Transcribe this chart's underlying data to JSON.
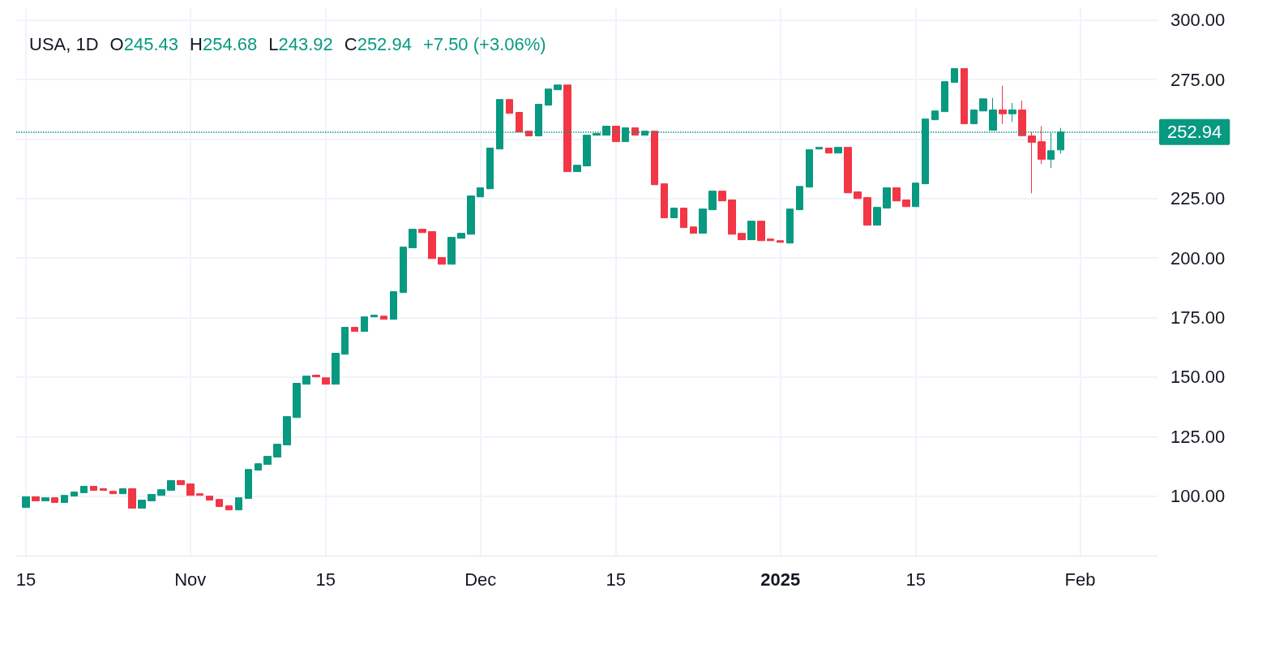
{
  "chart_data": {
    "type": "candlestick",
    "title": "USA, 1D",
    "annotations": [
      "O245.43",
      "H254.68",
      "L243.92",
      "C252.94",
      "+7.50 (+3.06%)"
    ],
    "x": [
      "2024-10-15",
      "2024-10-16",
      "2024-10-17",
      "2024-10-18",
      "2024-10-19",
      "2024-10-20",
      "2024-10-21",
      "2024-10-22",
      "2024-10-23",
      "2024-10-24",
      "2024-10-25",
      "2024-10-26",
      "2024-10-27",
      "2024-10-28",
      "2024-10-29",
      "2024-10-30",
      "2024-10-31",
      "2024-11-01",
      "2024-11-02",
      "2024-11-03",
      "2024-11-04",
      "2024-11-05",
      "2024-11-06",
      "2024-11-07",
      "2024-11-08",
      "2024-11-09",
      "2024-11-10",
      "2024-11-11",
      "2024-11-12",
      "2024-11-13",
      "2024-11-14",
      "2024-11-15",
      "2024-11-16",
      "2024-11-17",
      "2024-11-18",
      "2024-11-19",
      "2024-11-20",
      "2024-11-21",
      "2024-11-22",
      "2024-11-23",
      "2024-11-24",
      "2024-11-25",
      "2024-11-26",
      "2024-11-27",
      "2024-11-28",
      "2024-11-29",
      "2024-11-30",
      "2024-12-01",
      "2024-12-02",
      "2024-12-03",
      "2024-12-04",
      "2024-12-05",
      "2024-12-06",
      "2024-12-07",
      "2024-12-08",
      "2024-12-09",
      "2024-12-10",
      "2024-12-11",
      "2024-12-12",
      "2024-12-13",
      "2024-12-14",
      "2024-12-15",
      "2024-12-16",
      "2024-12-17",
      "2024-12-18",
      "2024-12-19",
      "2024-12-20",
      "2024-12-21",
      "2024-12-22",
      "2024-12-23",
      "2024-12-24",
      "2024-12-25",
      "2024-12-26",
      "2024-12-27",
      "2024-12-28",
      "2024-12-29",
      "2024-12-30",
      "2024-12-31",
      "2025-01-01",
      "2025-01-02",
      "2025-01-03",
      "2025-01-04",
      "2025-01-05",
      "2025-01-06",
      "2025-01-07",
      "2025-01-08",
      "2025-01-09",
      "2025-01-10",
      "2025-01-11",
      "2025-01-12",
      "2025-01-13",
      "2025-01-14",
      "2025-01-15",
      "2025-01-16",
      "2025-01-17",
      "2025-01-18",
      "2025-01-19",
      "2025-01-20",
      "2025-01-21",
      "2025-01-22",
      "2025-01-23",
      "2025-01-24",
      "2025-01-25",
      "2025-01-26",
      "2025-01-27",
      "2025-01-28",
      "2025-01-29",
      "2025-01-30"
    ],
    "ohlc": [
      [
        95.2,
        99.7,
        95.2,
        99.7
      ],
      [
        99.7,
        99.7,
        98.0,
        98.0
      ],
      [
        98.0,
        99.3,
        98.0,
        99.3
      ],
      [
        99.3,
        99.3,
        97.3,
        97.3
      ],
      [
        97.3,
        100.3,
        97.3,
        100.3
      ],
      [
        100.0,
        101.7,
        100.0,
        101.7
      ],
      [
        101.4,
        104.1,
        101.4,
        104.1
      ],
      [
        104.1,
        104.1,
        102.4,
        102.4
      ],
      [
        103.1,
        103.1,
        102.4,
        102.4
      ],
      [
        102.0,
        102.0,
        101.0,
        101.0
      ],
      [
        101.0,
        103.1,
        101.0,
        103.1
      ],
      [
        103.1,
        103.1,
        94.9,
        94.9
      ],
      [
        94.9,
        98.3,
        94.9,
        98.3
      ],
      [
        98.0,
        100.7,
        98.0,
        100.7
      ],
      [
        100.3,
        102.7,
        100.3,
        102.7
      ],
      [
        102.4,
        106.5,
        102.4,
        106.5
      ],
      [
        106.5,
        106.5,
        104.8,
        104.8
      ],
      [
        105.1,
        105.1,
        100.3,
        100.3
      ],
      [
        101.0,
        101.0,
        100.3,
        100.3
      ],
      [
        100.0,
        100.0,
        98.3,
        98.3
      ],
      [
        98.6,
        98.6,
        95.6,
        95.6
      ],
      [
        95.9,
        95.9,
        94.2,
        94.2
      ],
      [
        94.2,
        99.3,
        94.2,
        99.3
      ],
      [
        99.0,
        111.2,
        99.0,
        111.2
      ],
      [
        110.9,
        113.6,
        110.9,
        113.6
      ],
      [
        113.3,
        116.7,
        113.3,
        116.7
      ],
      [
        116.4,
        121.8,
        116.4,
        121.8
      ],
      [
        121.5,
        133.4,
        121.5,
        133.4
      ],
      [
        133.0,
        147.4,
        133.0,
        147.4
      ],
      [
        147.0,
        150.4,
        147.0,
        150.4
      ],
      [
        150.8,
        150.8,
        150.1,
        150.1
      ],
      [
        149.7,
        149.7,
        147.0,
        147.0
      ],
      [
        147.0,
        160.0,
        147.0,
        160.0
      ],
      [
        159.6,
        170.9,
        159.6,
        170.9
      ],
      [
        170.9,
        170.9,
        169.2,
        169.2
      ],
      [
        169.2,
        175.3,
        169.2,
        175.3
      ],
      [
        175.3,
        176.0,
        175.3,
        176.0
      ],
      [
        175.6,
        175.6,
        174.3,
        174.3
      ],
      [
        174.3,
        185.9,
        174.3,
        185.9
      ],
      [
        185.5,
        204.6,
        185.5,
        204.6
      ],
      [
        204.3,
        212.1,
        204.3,
        212.1
      ],
      [
        212.1,
        212.1,
        210.7,
        210.7
      ],
      [
        211.1,
        211.1,
        199.8,
        199.8
      ],
      [
        200.2,
        200.2,
        197.4,
        197.4
      ],
      [
        197.4,
        208.7,
        197.4,
        208.7
      ],
      [
        208.3,
        210.4,
        208.3,
        210.4
      ],
      [
        210.0,
        226.1,
        210.0,
        226.1
      ],
      [
        225.7,
        229.5,
        225.7,
        229.5
      ],
      [
        229.1,
        246.2,
        229.1,
        246.2
      ],
      [
        245.8,
        266.6,
        245.8,
        266.6
      ],
      [
        266.6,
        266.6,
        260.8,
        260.8
      ],
      [
        261.2,
        261.2,
        253.0,
        253.0
      ],
      [
        253.3,
        253.3,
        251.3,
        251.3
      ],
      [
        251.3,
        264.6,
        251.3,
        264.6
      ],
      [
        264.2,
        271.0,
        264.2,
        271.0
      ],
      [
        270.7,
        272.7,
        270.7,
        272.7
      ],
      [
        272.7,
        272.7,
        236.3,
        236.3
      ],
      [
        236.3,
        239.0,
        236.3,
        239.0
      ],
      [
        238.7,
        251.6,
        238.7,
        251.6
      ],
      [
        251.6,
        252.3,
        251.6,
        252.3
      ],
      [
        251.6,
        255.4,
        251.6,
        255.4
      ],
      [
        255.4,
        255.4,
        248.9,
        248.9
      ],
      [
        248.9,
        254.7,
        248.9,
        254.7
      ],
      [
        254.7,
        254.7,
        251.6,
        251.6
      ],
      [
        251.6,
        253.3,
        251.6,
        253.3
      ],
      [
        253.3,
        253.3,
        230.8,
        230.8
      ],
      [
        231.2,
        231.2,
        216.9,
        216.9
      ],
      [
        216.9,
        221.0,
        216.9,
        221.0
      ],
      [
        221.0,
        221.0,
        212.8,
        212.8
      ],
      [
        213.1,
        213.1,
        210.4,
        210.4
      ],
      [
        210.4,
        220.6,
        210.4,
        220.6
      ],
      [
        220.3,
        228.1,
        220.3,
        228.1
      ],
      [
        228.1,
        228.1,
        224.0,
        224.0
      ],
      [
        224.4,
        224.4,
        210.0,
        210.0
      ],
      [
        210.4,
        210.4,
        207.7,
        207.7
      ],
      [
        207.7,
        215.5,
        207.7,
        215.5
      ],
      [
        215.5,
        215.5,
        207.3,
        207.3
      ],
      [
        208.0,
        208.0,
        207.3,
        207.3
      ],
      [
        207.3,
        207.3,
        206.6,
        206.6
      ],
      [
        206.3,
        220.6,
        206.3,
        220.6
      ],
      [
        220.3,
        230.1,
        220.3,
        230.1
      ],
      [
        229.8,
        245.5,
        229.8,
        245.5
      ],
      [
        245.8,
        246.5,
        245.8,
        246.5
      ],
      [
        246.2,
        246.2,
        244.1,
        244.1
      ],
      [
        244.1,
        246.5,
        244.1,
        246.5
      ],
      [
        246.5,
        246.5,
        227.4,
        227.4
      ],
      [
        227.8,
        227.8,
        225.0,
        225.0
      ],
      [
        225.4,
        225.4,
        213.8,
        213.8
      ],
      [
        213.8,
        221.3,
        213.8,
        221.3
      ],
      [
        221.0,
        229.5,
        221.0,
        229.5
      ],
      [
        229.5,
        229.5,
        224.0,
        224.0
      ],
      [
        224.4,
        224.4,
        221.6,
        221.6
      ],
      [
        221.6,
        231.5,
        221.6,
        231.5
      ],
      [
        231.2,
        258.4,
        231.2,
        258.4
      ],
      [
        258.1,
        261.8,
        258.1,
        261.8
      ],
      [
        261.5,
        274.1,
        261.5,
        274.1
      ],
      [
        273.8,
        279.6,
        273.8,
        279.6
      ],
      [
        279.6,
        279.6,
        256.4,
        256.4
      ],
      [
        256.4,
        262.2,
        256.4,
        262.2
      ],
      [
        261.8,
        266.9,
        261.8,
        266.9
      ],
      [
        253.7,
        267.3,
        253.7,
        262.2
      ],
      [
        262.2,
        272.4,
        256.3,
        260.6
      ],
      [
        260.6,
        265.2,
        257.2,
        262.2
      ],
      [
        262.2,
        266.2,
        251.4,
        251.4
      ],
      [
        251.3,
        253.0,
        227.2,
        248.6
      ],
      [
        248.9,
        255.4,
        239.5,
        241.5
      ],
      [
        241.5,
        252.6,
        237.8,
        245.1
      ],
      [
        245.43,
        254.68,
        243.92,
        252.94
      ]
    ],
    "colors": [
      "#089981",
      "#f23645",
      "#089981",
      "#f23645",
      "#089981",
      "#089981",
      "#089981",
      "#f23645",
      "#f23645",
      "#f23645",
      "#089981",
      "#f23645",
      "#089981",
      "#089981",
      "#089981",
      "#089981",
      "#f23645",
      "#f23645",
      "#f23645",
      "#f23645",
      "#f23645",
      "#f23645",
      "#089981",
      "#089981",
      "#089981",
      "#089981",
      "#089981",
      "#089981",
      "#089981",
      "#089981",
      "#f23645",
      "#f23645",
      "#089981",
      "#089981",
      "#f23645",
      "#089981",
      "#089981",
      "#f23645",
      "#089981",
      "#089981",
      "#089981",
      "#f23645",
      "#f23645",
      "#f23645",
      "#089981",
      "#089981",
      "#089981",
      "#089981",
      "#089981",
      "#089981",
      "#f23645",
      "#f23645",
      "#f23645",
      "#089981",
      "#089981",
      "#089981",
      "#f23645",
      "#089981",
      "#089981",
      "#089981",
      "#089981",
      "#f23645",
      "#089981",
      "#f23645",
      "#089981",
      "#f23645",
      "#f23645",
      "#089981",
      "#f23645",
      "#f23645",
      "#089981",
      "#089981",
      "#f23645",
      "#f23645",
      "#f23645",
      "#089981",
      "#f23645",
      "#f23645",
      "#f23645",
      "#089981",
      "#089981",
      "#089981",
      "#089981",
      "#f23645",
      "#089981",
      "#f23645",
      "#f23645",
      "#f23645",
      "#089981",
      "#089981",
      "#f23645",
      "#f23645",
      "#089981",
      "#089981",
      "#089981",
      "#089981",
      "#089981",
      "#f23645",
      "#089981",
      "#089981",
      "#089981",
      "#f23645",
      "#089981",
      "#f23645",
      "#f23645",
      "#f23645",
      "#089981",
      "#089981"
    ],
    "xlim": [
      "2024-10-14",
      "2025-02-09"
    ],
    "xticks": [
      {
        "value": "2024-10-15",
        "label": "15"
      },
      {
        "value": "2024-11-01",
        "label": "Nov"
      },
      {
        "value": "2024-11-15",
        "label": "15"
      },
      {
        "value": "2024-12-01",
        "label": "Dec"
      },
      {
        "value": "2024-12-15",
        "label": "15"
      },
      {
        "value": "2025-01-01",
        "label": "2025"
      },
      {
        "value": "2025-01-15",
        "label": "15"
      },
      {
        "value": "2025-02-01",
        "label": "Feb"
      }
    ],
    "ylim": [
      75,
      305
    ],
    "yticks": [
      {
        "value": 100,
        "label": "100.00"
      },
      {
        "value": 125,
        "label": "125.00"
      },
      {
        "value": 150,
        "label": "150.00"
      },
      {
        "value": 175,
        "label": "175.00"
      },
      {
        "value": 200,
        "label": "200.00"
      },
      {
        "value": 225,
        "label": "225.00"
      },
      {
        "value": 250,
        "label": null
      },
      {
        "value": 275,
        "label": "275.00"
      },
      {
        "value": 300,
        "label": "300.00"
      }
    ],
    "grid": true,
    "ref_lines": [
      {
        "axis": "y",
        "value": 252.94,
        "label": "252.94",
        "color": "#089981",
        "line_style": "dotted"
      }
    ]
  }
}
